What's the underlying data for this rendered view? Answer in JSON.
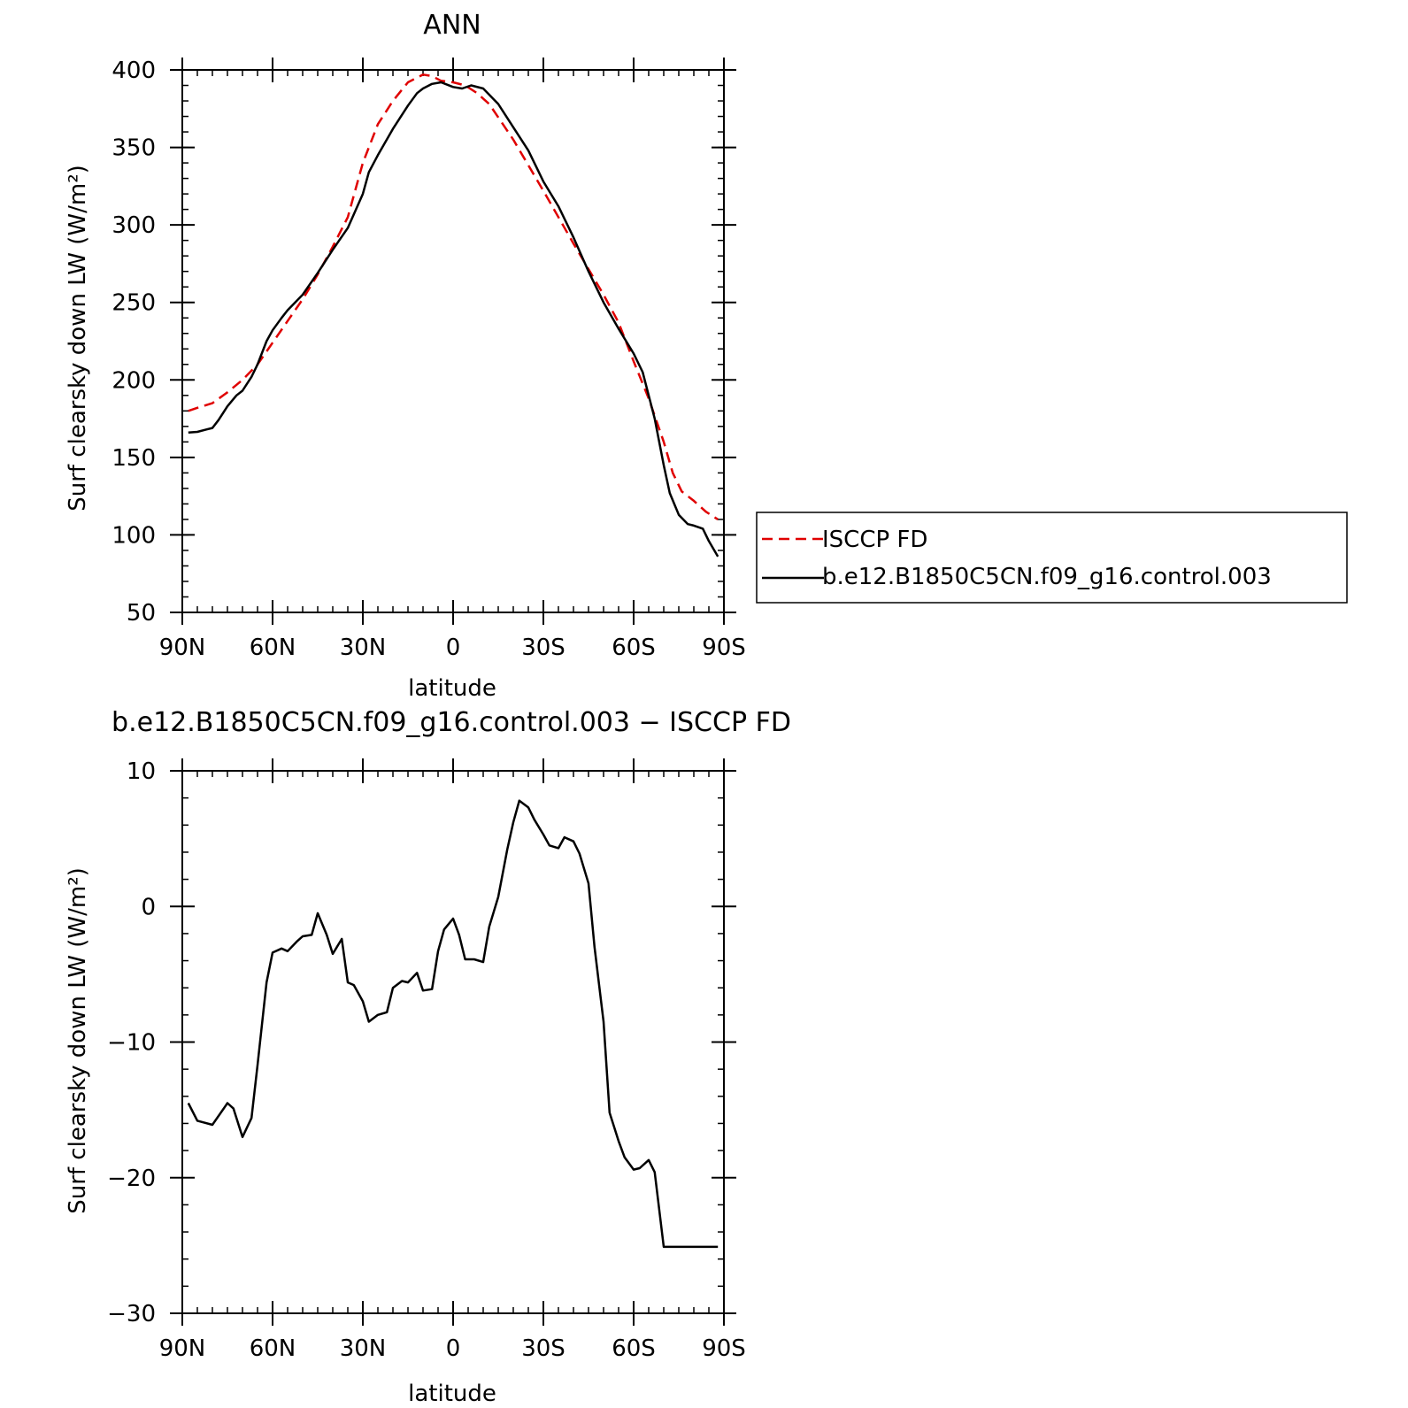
{
  "chart_data": [
    {
      "type": "line",
      "title": "ANN",
      "xlabel": "latitude",
      "ylabel": "Surf clearsky down LW (W/m²)",
      "xlim": [
        90,
        -90
      ],
      "ylim": [
        50,
        400
      ],
      "xticks": [
        {
          "value": 90,
          "label": "90N"
        },
        {
          "value": 60,
          "label": "60N"
        },
        {
          "value": 30,
          "label": "30N"
        },
        {
          "value": 0,
          "label": "0"
        },
        {
          "value": -30,
          "label": "30S"
        },
        {
          "value": -60,
          "label": "60S"
        },
        {
          "value": -90,
          "label": "90S"
        }
      ],
      "yticks": [
        {
          "value": 400,
          "label": "400"
        },
        {
          "value": 350,
          "label": "350"
        },
        {
          "value": 300,
          "label": "300"
        },
        {
          "value": 250,
          "label": "250"
        },
        {
          "value": 200,
          "label": "200"
        },
        {
          "value": 150,
          "label": "150"
        },
        {
          "value": 100,
          "label": "100"
        },
        {
          "value": 50,
          "label": "50"
        }
      ],
      "legend": {
        "placement": "right"
      },
      "series": [
        {
          "name": "ISCCP FD",
          "color": "#e00000",
          "dash": "dashed",
          "x": [
            88,
            85,
            80,
            75,
            70,
            65,
            60,
            55,
            50,
            45,
            40,
            35,
            30,
            25,
            20,
            15,
            10,
            7,
            4,
            0,
            -4,
            -8,
            -12,
            -20,
            -30,
            -40,
            -50,
            -55,
            -60,
            -65,
            -70,
            -73,
            -76,
            -80,
            -84,
            -88
          ],
          "y": [
            180,
            182,
            185,
            192,
            200,
            210,
            224,
            238,
            252,
            268,
            286,
            305,
            340,
            365,
            380,
            392,
            397,
            396,
            393,
            392,
            390,
            385,
            378,
            355,
            322,
            288,
            255,
            237,
            212,
            188,
            160,
            140,
            128,
            122,
            115,
            110
          ]
        },
        {
          "name": "b.e12.B1850C5CN.f09_g16.control.003",
          "color": "#000000",
          "dash": "solid",
          "x": [
            88,
            85,
            82,
            80,
            78,
            75,
            72,
            70,
            67,
            65,
            62,
            60,
            57,
            55,
            50,
            45,
            40,
            35,
            30,
            28,
            25,
            20,
            15,
            12,
            10,
            7,
            4,
            0,
            -3,
            -6,
            -10,
            -15,
            -20,
            -25,
            -30,
            -35,
            -40,
            -45,
            -50,
            -55,
            -60,
            -63,
            -65,
            -67,
            -70,
            -72,
            -75,
            -78,
            -80,
            -83,
            -85,
            -88
          ],
          "y": [
            166,
            166.5,
            168,
            169,
            174,
            183,
            190,
            193,
            202,
            210,
            225,
            232,
            240,
            245,
            255,
            269,
            284,
            298,
            320,
            334,
            345,
            362,
            377,
            385,
            388,
            391,
            392,
            389,
            388,
            390,
            388,
            378,
            363,
            348,
            328,
            312,
            292,
            270,
            250,
            233,
            217,
            205,
            190,
            175,
            145,
            127,
            113,
            107,
            106,
            104,
            96,
            86
          ]
        }
      ]
    },
    {
      "type": "line",
      "title": "b.e12.B1850C5CN.f09_g16.control.003 − ISCCP FD",
      "xlabel": "latitude",
      "ylabel": "Surf clearsky down LW (W/m²)",
      "xlim": [
        90,
        -90
      ],
      "ylim": [
        -30,
        10
      ],
      "xticks": [
        {
          "value": 90,
          "label": "90N"
        },
        {
          "value": 60,
          "label": "60N"
        },
        {
          "value": 30,
          "label": "30N"
        },
        {
          "value": 0,
          "label": "0"
        },
        {
          "value": -30,
          "label": "30S"
        },
        {
          "value": -60,
          "label": "60S"
        },
        {
          "value": -90,
          "label": "90S"
        }
      ],
      "yticks": [
        {
          "value": 10,
          "label": "10"
        },
        {
          "value": 0,
          "label": "0"
        },
        {
          "value": -10,
          "label": "−10"
        },
        {
          "value": -20,
          "label": "−20"
        },
        {
          "value": -30,
          "label": "−30"
        }
      ],
      "series": [
        {
          "color": "#000000",
          "dash": "solid",
          "x": [
            88,
            85,
            80,
            75,
            73,
            70,
            67,
            65,
            62,
            60,
            57,
            55,
            52,
            50,
            47,
            45,
            42,
            40,
            37,
            35,
            33,
            30,
            28,
            25,
            22,
            20,
            17,
            15,
            12,
            10,
            7,
            5,
            3,
            0,
            -2,
            -4,
            -7,
            -10,
            -12,
            -15,
            -18,
            -20,
            -22,
            -25,
            -27,
            -30,
            -32,
            -35,
            -37,
            -40,
            -42,
            -45,
            -47,
            -50,
            -52,
            -55,
            -57,
            -60,
            -62,
            -65,
            -67,
            -70,
            -72,
            -75,
            -77,
            -80,
            -82,
            -85,
            -88
          ],
          "y": [
            -14.5,
            -15.8,
            -16.1,
            -14.5,
            -14.9,
            -17,
            -15.6,
            -11.7,
            -5.6,
            -3.4,
            -3.1,
            -3.3,
            -2.6,
            -2.2,
            -2.1,
            -0.5,
            -2.1,
            -3.5,
            -2.4,
            -5.6,
            -5.8,
            -7,
            -8.5,
            -8,
            -7.8,
            -6,
            -5.5,
            -5.6,
            -4.9,
            -6.2,
            -6.1,
            -3.3,
            -1.7,
            -0.9,
            -2.1,
            -3.9,
            -3.9,
            -4.1,
            -1.5,
            0.7,
            4.2,
            6.2,
            7.8,
            7.3,
            6.4,
            5.3,
            4.5,
            4.3,
            5.1,
            4.8,
            3.9,
            1.7,
            -3.0,
            -8.5,
            -15.2,
            -17.3,
            -18.5,
            -19.4,
            -19.3,
            -18.7,
            -19.6,
            -25.1,
            -25.1,
            -25.1,
            -25.1,
            -25.1,
            -25.1,
            -25.1,
            -25.1
          ]
        }
      ]
    }
  ]
}
